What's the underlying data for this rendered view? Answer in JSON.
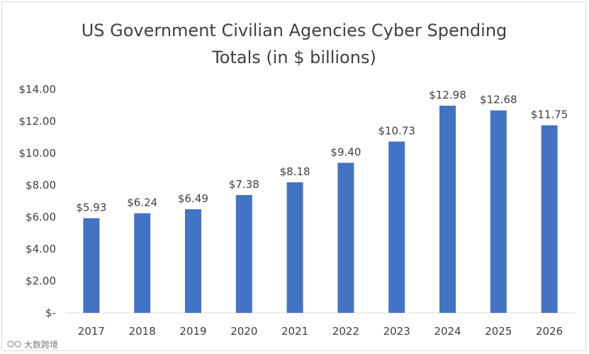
{
  "chart_data": {
    "type": "bar",
    "title_lines": [
      "US Government Civilian Agencies Cyber Spending",
      "Totals (in $ billions)"
    ],
    "categories": [
      "2017",
      "2018",
      "2019",
      "2020",
      "2021",
      "2022",
      "2023",
      "2024",
      "2025",
      "2026"
    ],
    "values": [
      5.93,
      6.24,
      6.49,
      7.38,
      8.18,
      9.4,
      10.73,
      12.98,
      12.68,
      11.75
    ],
    "data_labels": [
      "$5.93",
      "$6.24",
      "$6.49",
      "$7.38",
      "$8.18",
      "$9.40",
      "$10.73",
      "$12.98",
      "$12.68",
      "$11.75"
    ],
    "y_ticks": [
      0,
      2,
      4,
      6,
      8,
      10,
      12,
      14
    ],
    "y_tick_labels": [
      "$-",
      "$2.00",
      "$4.00",
      "$6.00",
      "$8.00",
      "$10.00",
      "$12.00",
      "$14.00"
    ],
    "ylim": [
      0,
      14
    ],
    "xlabel": "",
    "ylabel": "",
    "grid": false,
    "legend": "none",
    "bar_color": "#4472c4",
    "axis_color": "#d9d9d9"
  },
  "watermark": {
    "text": "大数跨境"
  }
}
